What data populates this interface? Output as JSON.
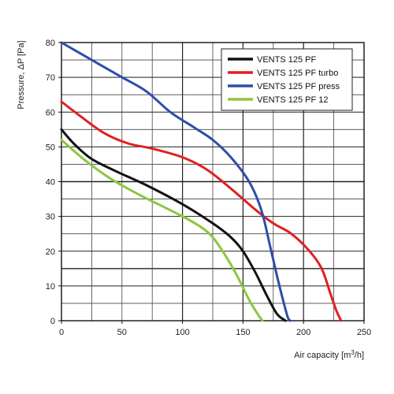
{
  "chart_data": {
    "type": "line",
    "xlabel_main": "Air capacity [m",
    "xlabel_sup": "3",
    "xlabel_tail": "/h]",
    "ylabel": "Pressure, ΔP [Pa]",
    "xlim": [
      0,
      250
    ],
    "ylim": [
      0,
      80
    ],
    "grid": true,
    "legend_position": "top-right",
    "x_ticks": [
      "0",
      "50",
      "100",
      "150",
      "200",
      "250"
    ],
    "y_ticks": [
      "0",
      "10",
      "20",
      "30",
      "40",
      "50",
      "60",
      "70",
      "80"
    ],
    "series": [
      {
        "name": "VENTS 125 PF",
        "color": "#111111",
        "points": [
          [
            0,
            55
          ],
          [
            10,
            51
          ],
          [
            25,
            46.5
          ],
          [
            45,
            43
          ],
          [
            70,
            39
          ],
          [
            100,
            33.5
          ],
          [
            125,
            28
          ],
          [
            140,
            24
          ],
          [
            150,
            20
          ],
          [
            160,
            14
          ],
          [
            170,
            7
          ],
          [
            178,
            2
          ],
          [
            185,
            0
          ]
        ]
      },
      {
        "name": "VENTS 125 PF turbo",
        "color": "#e02020",
        "points": [
          [
            0,
            63
          ],
          [
            15,
            59
          ],
          [
            35,
            54
          ],
          [
            55,
            51
          ],
          [
            75,
            49.5
          ],
          [
            100,
            47
          ],
          [
            120,
            43.5
          ],
          [
            140,
            38
          ],
          [
            160,
            32
          ],
          [
            175,
            28
          ],
          [
            190,
            25
          ],
          [
            205,
            20
          ],
          [
            215,
            15
          ],
          [
            222,
            8
          ],
          [
            227,
            3
          ],
          [
            231,
            0
          ]
        ]
      },
      {
        "name": "VENTS 125 PF press",
        "color": "#2b4fa8",
        "points": [
          [
            0,
            80
          ],
          [
            25,
            75
          ],
          [
            50,
            70
          ],
          [
            70,
            66
          ],
          [
            90,
            60
          ],
          [
            110,
            55.5
          ],
          [
            125,
            52
          ],
          [
            140,
            47
          ],
          [
            155,
            40
          ],
          [
            165,
            32
          ],
          [
            172,
            22
          ],
          [
            178,
            13
          ],
          [
            183,
            6
          ],
          [
            187,
            1
          ],
          [
            189,
            0
          ]
        ]
      },
      {
        "name": "VENTS 125 PF 12",
        "color": "#8dc63f",
        "points": [
          [
            0,
            52
          ],
          [
            20,
            46
          ],
          [
            40,
            41
          ],
          [
            60,
            37
          ],
          [
            80,
            33.5
          ],
          [
            100,
            30
          ],
          [
            115,
            27
          ],
          [
            125,
            24
          ],
          [
            135,
            19
          ],
          [
            145,
            13
          ],
          [
            155,
            6
          ],
          [
            162,
            2
          ],
          [
            166,
            0
          ]
        ]
      }
    ]
  }
}
